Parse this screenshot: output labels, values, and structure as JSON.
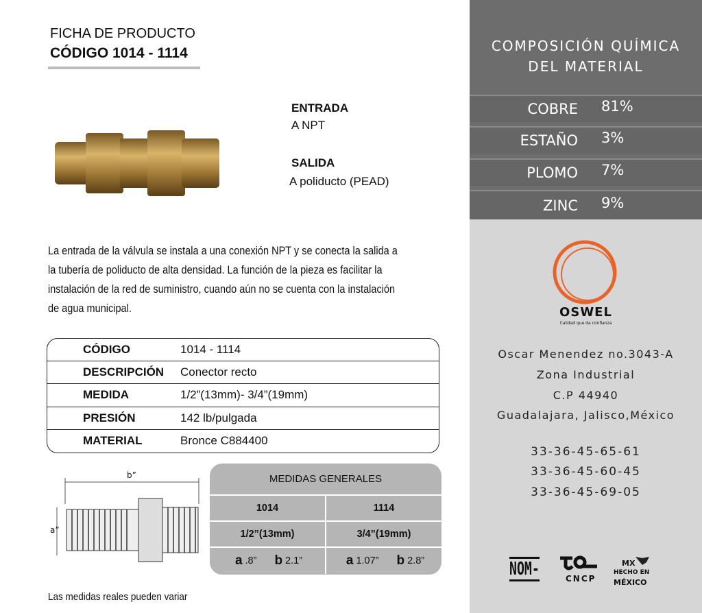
{
  "header": {
    "line1": "FICHA DE PRODUCTO",
    "line2": "CÓDIGO 1014 - 1114"
  },
  "io": {
    "entrada_label": "ENTRADA",
    "entrada_value": "A NPT",
    "salida_label": "SALIDA",
    "salida_value": "A poliducto (PEAD)"
  },
  "description": "La entrada de la válvula se instala a una conexión NPT  y se conecta la salida a la tubería de poliducto de alta densidad. La función de la pieza es facilitar la instalación de la red de suministro, cuando aún no se cuenta con la instalación de agua municipal.",
  "spec": [
    {
      "k": "CÓDIGO",
      "v": "1014 - 1114"
    },
    {
      "k": "DESCRIPCIÓN",
      "v": "Conector recto"
    },
    {
      "k": "MEDIDA",
      "v": "1/2”(13mm)- 3/4”(19mm)"
    },
    {
      "k": "PRESIÓN",
      "v": "142 lb/pulgada"
    },
    {
      "k": "MATERIAL",
      "v": "Bronce C884400"
    }
  ],
  "drawing": {
    "b_label": "b”",
    "a_label": "a”"
  },
  "medidas": {
    "title": "MEDIDAS GENERALES",
    "cols": [
      {
        "code": "1014",
        "size": "1/2”(13mm)",
        "a_label": "a",
        "a": ".8”",
        "b_label": "b",
        "b": "2.1”"
      },
      {
        "code": "1114",
        "size": "3/4”(19mm)",
        "a_label": "a",
        "a": "1.07”",
        "b_label": "b",
        "b": "2.8”"
      }
    ]
  },
  "note": "Las medidas reales pueden variar",
  "composition": {
    "title1": "COMPOSICIÓN QUÍMICA",
    "title2": "DEL MATERIAL",
    "items": [
      {
        "name": "COBRE",
        "pct": "81%"
      },
      {
        "name": "ESTAÑO",
        "pct": "3%"
      },
      {
        "name": "PLOMO",
        "pct": "7%"
      },
      {
        "name": "ZINC",
        "pct": "9%"
      }
    ]
  },
  "logo": {
    "name": "OSWEL",
    "tagline": "Calidad que da confianza",
    "color": "#e8632a"
  },
  "address": [
    "Oscar  Menendez  no.3043-A",
    "Zona  Industrial",
    "C.P  44940",
    "Guadalajara,  Jalisco,México"
  ],
  "phones": [
    "33-36-45-65-61",
    "33-36-45-60-45",
    "33-36-45-69-05"
  ],
  "certs": {
    "nom": "NOM-",
    "cncp": "CNCP",
    "mx": "MX",
    "hecho": "HECHO EN",
    "mexico": "MÉXICO"
  }
}
